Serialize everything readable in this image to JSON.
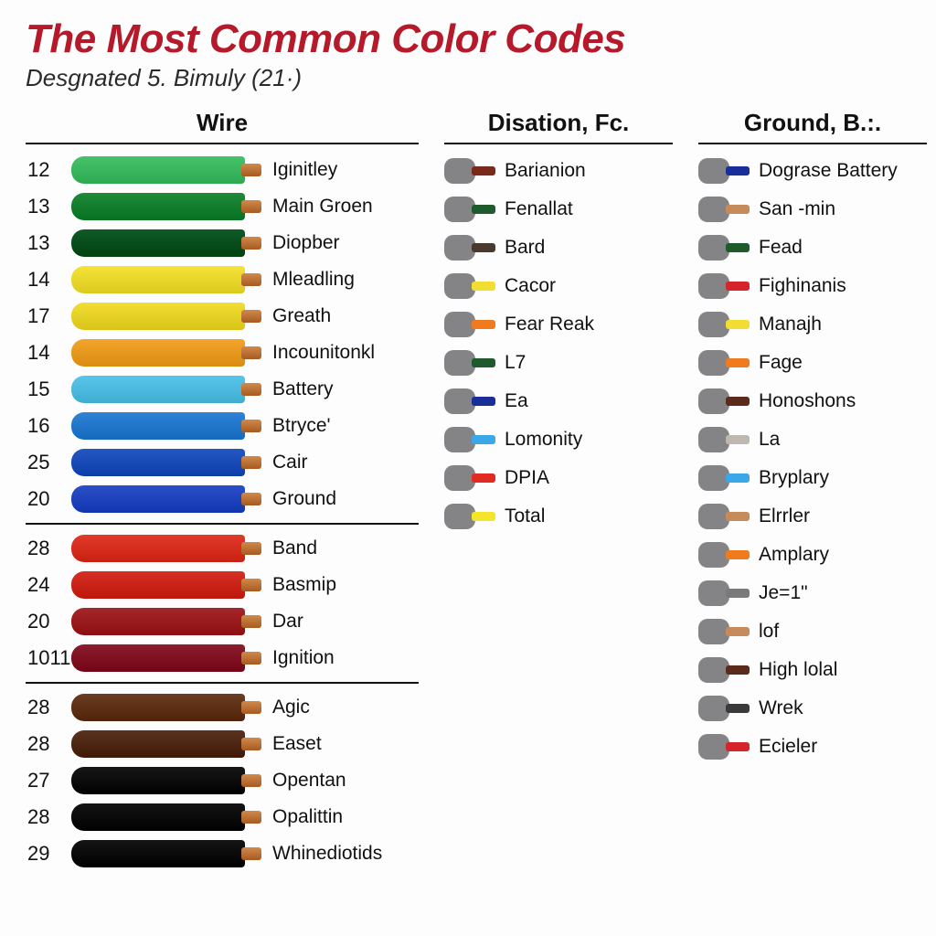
{
  "title": "The Most Common Color Codes",
  "subtitle": "Desgnated 5. Bimuly (21·)",
  "headers": {
    "wire": "Wire",
    "mid": "Disation, Fc.",
    "right": "Ground, B.:."
  },
  "wire_sections": [
    {
      "rows": [
        {
          "num": "12",
          "color": "#46c26a",
          "label": "Iginitley"
        },
        {
          "num": "13",
          "color": "#1f8a3a",
          "label": "Main Groen"
        },
        {
          "num": "13",
          "color": "#0f5a28",
          "label": "Diopber"
        },
        {
          "num": "14",
          "color": "#f5e338",
          "label": "Mleadling"
        },
        {
          "num": "17",
          "color": "#f2dd33",
          "label": "Greath"
        },
        {
          "num": "14",
          "color": "#f2a52a",
          "label": "Incounitonkl"
        },
        {
          "num": "15",
          "color": "#58c5ea",
          "label": "Battery"
        },
        {
          "num": "16",
          "color": "#2f83d6",
          "label": "Btryce'"
        },
        {
          "num": "25",
          "color": "#2557c2",
          "label": "Cair"
        },
        {
          "num": "20",
          "color": "#2a4fc9",
          "label": "Ground"
        }
      ]
    },
    {
      "rows": [
        {
          "num": "28",
          "color": "#e23a2a",
          "label": "Band"
        },
        {
          "num": "24",
          "color": "#d63024",
          "label": "Basmip"
        },
        {
          "num": "20",
          "color": "#a6272a",
          "label": "Dar"
        },
        {
          "num": "1011",
          "color": "#8c1d2e",
          "label": "Ignition"
        }
      ]
    },
    {
      "rows": [
        {
          "num": "28",
          "color": "#6a3c22",
          "label": "Agic"
        },
        {
          "num": "28",
          "color": "#5a3220",
          "label": "Easet"
        },
        {
          "num": "27",
          "color": "#171717",
          "label": "Opentan"
        },
        {
          "num": "28",
          "color": "#141414",
          "label": "Opalittin"
        },
        {
          "num": "29",
          "color": "#141414",
          "label": "Whinediotids"
        }
      ]
    }
  ],
  "mid_rows": [
    {
      "tip": "#7a2a1a",
      "label": "Barianion"
    },
    {
      "tip": "#1f5a2c",
      "label": "Fenallat"
    },
    {
      "tip": "#4a3a2e",
      "label": "Bard"
    },
    {
      "tip": "#f2dd33",
      "label": "Cacor"
    },
    {
      "tip": "#f07a1e",
      "label": "Fear Reak"
    },
    {
      "tip": "#1f5a2c",
      "label": "L7"
    },
    {
      "tip": "#1a2e9a",
      "label": "Ea"
    },
    {
      "tip": "#3aa8e8",
      "label": "Lomonity"
    },
    {
      "tip": "#e02a22",
      "label": "DPIA"
    },
    {
      "tip": "#f2e52a",
      "label": "Total"
    }
  ],
  "right_rows": [
    {
      "tip": "#1a2e9a",
      "label": "Dograse Battery"
    },
    {
      "tip": "#c78a5a",
      "label": "San -min"
    },
    {
      "tip": "#1f5a2c",
      "label": "Fead"
    },
    {
      "tip": "#d6252a",
      "label": "Fighinanis"
    },
    {
      "tip": "#f2dd33",
      "label": "Manajh"
    },
    {
      "tip": "#f07a1e",
      "label": "Fage"
    },
    {
      "tip": "#5a2a1a",
      "label": "Honoshons"
    },
    {
      "tip": "#bfb8b0",
      "label": "La"
    },
    {
      "tip": "#3aa8e8",
      "label": "Bryplary"
    },
    {
      "tip": "#c78a5a",
      "label": "Elrrler"
    },
    {
      "tip": "#f07a1e",
      "label": "Amplary"
    },
    {
      "tip": "#7a7a7a",
      "label": "Je=1\""
    },
    {
      "tip": "#c78a5a",
      "label": "lof"
    },
    {
      "tip": "#5a2a1a",
      "label": "High lolal"
    },
    {
      "tip": "#3a3a3a",
      "label": "Wrek"
    },
    {
      "tip": "#d6252a",
      "label": "Ecieler"
    }
  ]
}
